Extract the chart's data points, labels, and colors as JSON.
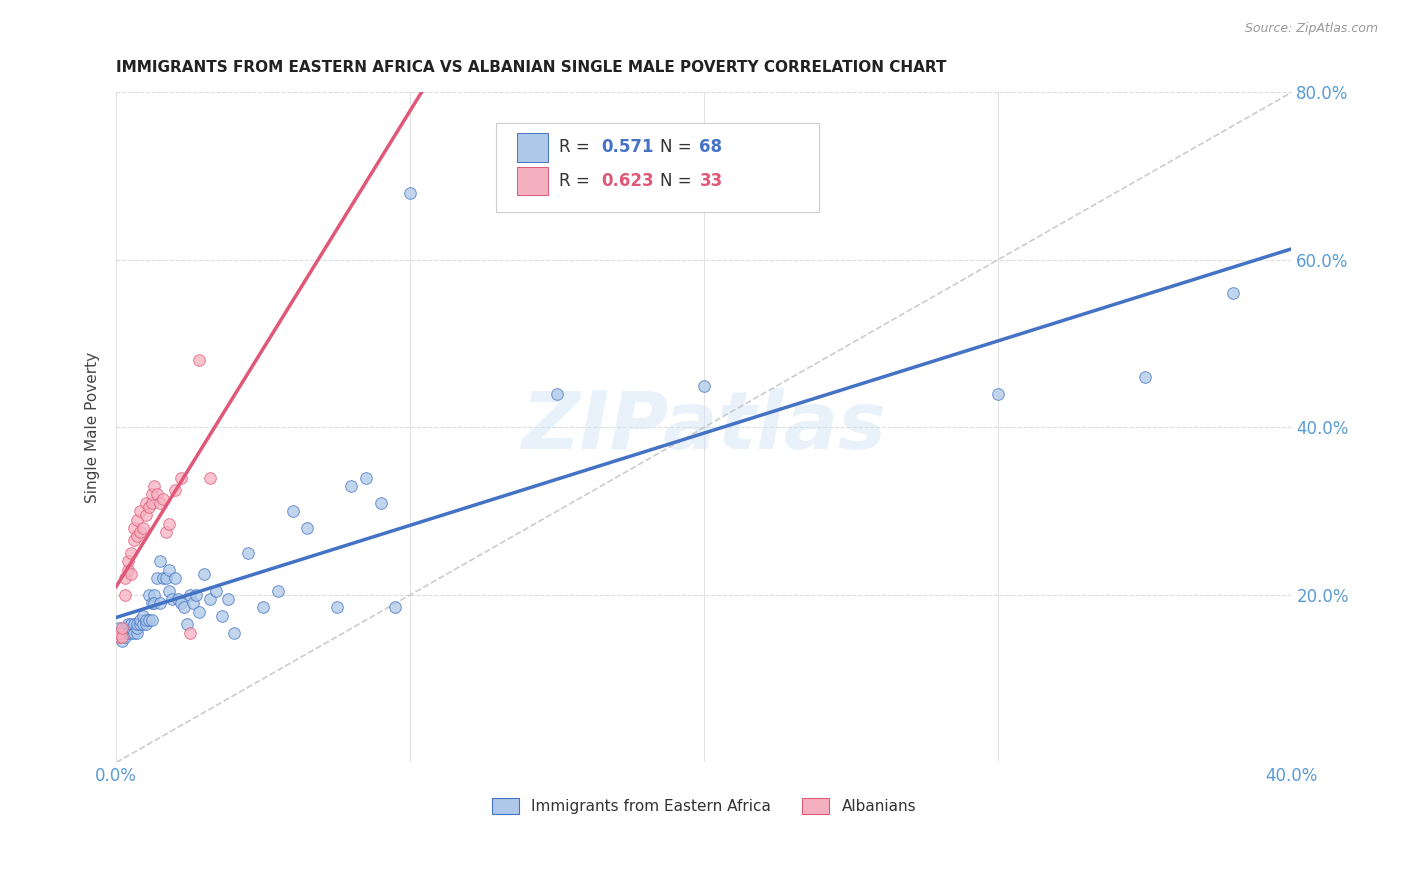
{
  "title": "IMMIGRANTS FROM EASTERN AFRICA VS ALBANIAN SINGLE MALE POVERTY CORRELATION CHART",
  "source": "Source: ZipAtlas.com",
  "ylabel": "Single Male Poverty",
  "legend_label_blue": "Immigrants from Eastern Africa",
  "legend_label_pink": "Albanians",
  "r_blue": 0.571,
  "n_blue": 68,
  "r_pink": 0.623,
  "n_pink": 33,
  "xlim": [
    0.0,
    0.4
  ],
  "ylim": [
    0.0,
    0.8
  ],
  "xtick_positions": [
    0.0,
    0.1,
    0.2,
    0.3,
    0.4
  ],
  "xtick_labels": [
    "0.0%",
    "",
    "",
    "",
    "40.0%"
  ],
  "yticks": [
    0.0,
    0.2,
    0.4,
    0.6,
    0.8
  ],
  "ytick_labels_right": [
    "",
    "20.0%",
    "40.0%",
    "60.0%",
    "80.0%"
  ],
  "color_blue": "#adc8e8",
  "color_pink": "#f5b0c0",
  "line_color_blue": "#4472c4",
  "line_color_pink": "#e05878",
  "diag_color": "#c0c0c0",
  "background_color": "#ffffff",
  "watermark": "ZIPatlas",
  "tick_color": "#5b9bd5",
  "blue_scatter_x": [
    0.001,
    0.001,
    0.002,
    0.002,
    0.003,
    0.003,
    0.003,
    0.004,
    0.004,
    0.005,
    0.005,
    0.005,
    0.006,
    0.006,
    0.007,
    0.007,
    0.007,
    0.008,
    0.008,
    0.009,
    0.009,
    0.01,
    0.01,
    0.011,
    0.011,
    0.012,
    0.012,
    0.013,
    0.013,
    0.014,
    0.015,
    0.015,
    0.016,
    0.017,
    0.018,
    0.018,
    0.019,
    0.02,
    0.021,
    0.022,
    0.023,
    0.024,
    0.025,
    0.026,
    0.027,
    0.028,
    0.03,
    0.032,
    0.034,
    0.036,
    0.038,
    0.04,
    0.045,
    0.05,
    0.055,
    0.06,
    0.065,
    0.075,
    0.08,
    0.085,
    0.09,
    0.095,
    0.1,
    0.15,
    0.2,
    0.3,
    0.35,
    0.38
  ],
  "blue_scatter_y": [
    0.15,
    0.16,
    0.145,
    0.155,
    0.15,
    0.155,
    0.16,
    0.155,
    0.165,
    0.155,
    0.16,
    0.165,
    0.155,
    0.165,
    0.155,
    0.16,
    0.165,
    0.165,
    0.17,
    0.165,
    0.175,
    0.165,
    0.17,
    0.17,
    0.2,
    0.17,
    0.19,
    0.2,
    0.19,
    0.22,
    0.19,
    0.24,
    0.22,
    0.22,
    0.205,
    0.23,
    0.195,
    0.22,
    0.195,
    0.19,
    0.185,
    0.165,
    0.2,
    0.19,
    0.2,
    0.18,
    0.225,
    0.195,
    0.205,
    0.175,
    0.195,
    0.155,
    0.25,
    0.185,
    0.205,
    0.3,
    0.28,
    0.185,
    0.33,
    0.34,
    0.31,
    0.185,
    0.68,
    0.44,
    0.45,
    0.44,
    0.46,
    0.56
  ],
  "pink_scatter_x": [
    0.001,
    0.001,
    0.002,
    0.002,
    0.003,
    0.003,
    0.004,
    0.004,
    0.005,
    0.005,
    0.006,
    0.006,
    0.007,
    0.007,
    0.008,
    0.008,
    0.009,
    0.01,
    0.01,
    0.011,
    0.012,
    0.012,
    0.013,
    0.014,
    0.015,
    0.016,
    0.017,
    0.018,
    0.02,
    0.022,
    0.025,
    0.028,
    0.032
  ],
  "pink_scatter_y": [
    0.15,
    0.155,
    0.15,
    0.16,
    0.2,
    0.22,
    0.23,
    0.24,
    0.225,
    0.25,
    0.265,
    0.28,
    0.27,
    0.29,
    0.275,
    0.3,
    0.28,
    0.295,
    0.31,
    0.305,
    0.31,
    0.32,
    0.33,
    0.32,
    0.31,
    0.315,
    0.275,
    0.285,
    0.325,
    0.34,
    0.155,
    0.48,
    0.34
  ]
}
